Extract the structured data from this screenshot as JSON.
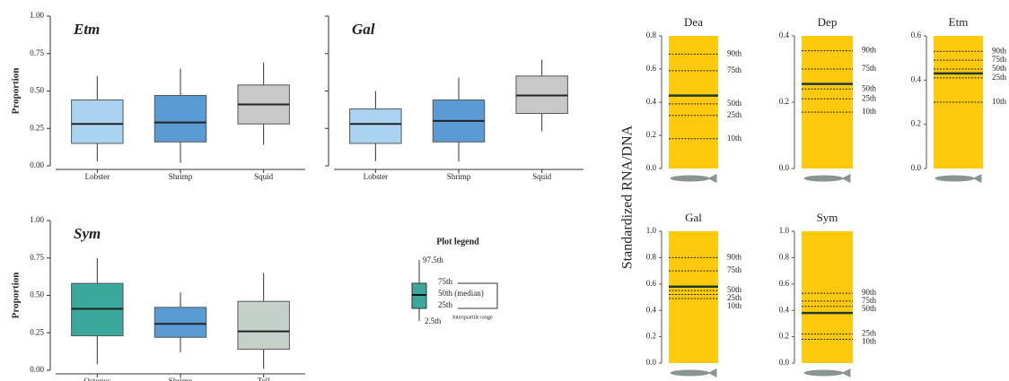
{
  "chart_data": [
    {
      "type": "box",
      "title": "Etm",
      "ylabel": "Proportion",
      "categories": [
        "Lobster",
        "Shrimp",
        "Squid"
      ],
      "colors": [
        "#a9d3f0",
        "#5b9bd5",
        "#c8c8c8"
      ],
      "whislo": [
        0.03,
        0.02,
        0.14
      ],
      "q1": [
        0.15,
        0.16,
        0.28
      ],
      "median": [
        0.28,
        0.29,
        0.41
      ],
      "q3": [
        0.44,
        0.47,
        0.54
      ],
      "whishi": [
        0.6,
        0.65,
        0.69
      ],
      "ylim": [
        0,
        1
      ],
      "yticks": [
        {
          "value": 0,
          "label": "0.00"
        },
        0.25,
        {
          "value": 0.5,
          "label": "0.50"
        },
        0.75,
        {
          "value": 1,
          "label": "1.00"
        }
      ],
      "show_ytick_labels": true
    },
    {
      "type": "box",
      "title": "Gal",
      "categories": [
        "Lobster",
        "Shrimp",
        "Squid"
      ],
      "colors": [
        "#a9d3f0",
        "#5b9bd5",
        "#c8c8c8"
      ],
      "whislo": [
        0.03,
        0.03,
        0.23
      ],
      "q1": [
        0.15,
        0.16,
        0.35
      ],
      "median": [
        0.28,
        0.3,
        0.47
      ],
      "q3": [
        0.38,
        0.44,
        0.6
      ],
      "whishi": [
        0.5,
        0.59,
        0.71
      ],
      "ylim": [
        0,
        1
      ],
      "yticks": [
        0,
        0.25,
        0.5,
        0.75,
        1
      ],
      "show_ytick_labels": false
    },
    {
      "type": "box",
      "title": "Sym",
      "ylabel": "Proportion",
      "categories": [
        "Octopus",
        "Shrimp",
        "Tell"
      ],
      "colors": [
        "#3aa89a",
        "#5b9bd5",
        "#c5d0c8"
      ],
      "whislo": [
        0.04,
        0.12,
        0.01
      ],
      "q1": [
        0.23,
        0.22,
        0.14
      ],
      "median": [
        0.41,
        0.31,
        0.26
      ],
      "q3": [
        0.58,
        0.42,
        0.46
      ],
      "whishi": [
        0.75,
        0.52,
        0.65
      ],
      "ylim": [
        0,
        1
      ],
      "yticks": [
        {
          "value": 0,
          "label": "0.00"
        },
        0.25,
        {
          "value": 0.5,
          "label": "0.50"
        },
        0.75,
        {
          "value": 1,
          "label": "1.00"
        }
      ],
      "show_ytick_labels": true
    },
    {
      "type": "percentile",
      "title": "Dea",
      "color": "#ffc90e",
      "value": 0.44,
      "percentiles": [
        {
          "name": "90th",
          "value": 0.69
        },
        {
          "name": "75th",
          "value": 0.59
        },
        {
          "name": "50th",
          "value": 0.39
        },
        {
          "name": "25th",
          "value": 0.32
        },
        {
          "name": "10th",
          "value": 0.18
        }
      ],
      "ylim": [
        0,
        0.8
      ],
      "yticks": [
        {
          "value": 0,
          "label": "0.0"
        },
        0.2,
        0.4,
        0.6,
        0.8
      ]
    },
    {
      "type": "percentile",
      "title": "Dep",
      "color": "#ffc90e",
      "value": 0.255,
      "percentiles": [
        {
          "name": "90th",
          "value": 0.355
        },
        {
          "name": "75th",
          "value": 0.3
        },
        {
          "name": "50th",
          "value": 0.24
        },
        {
          "name": "25th",
          "value": 0.21
        },
        {
          "name": "10th",
          "value": 0.17
        }
      ],
      "ylim": [
        0,
        0.4
      ],
      "yticks": [
        {
          "value": 0,
          "label": "0.0"
        },
        0.2,
        0.4
      ]
    },
    {
      "type": "percentile",
      "title": "Etm",
      "color": "#ffc90e",
      "value": 0.43,
      "percentiles": [
        {
          "name": "90th",
          "value": 0.53
        },
        {
          "name": "75th",
          "value": 0.49
        },
        {
          "name": "50th",
          "value": 0.45
        },
        {
          "name": "25th",
          "value": 0.41
        },
        {
          "name": "10th",
          "value": 0.3
        }
      ],
      "ylim": [
        0,
        0.6
      ],
      "yticks": [
        {
          "value": 0,
          "label": "0.0"
        },
        0.2,
        0.4,
        0.6
      ]
    },
    {
      "type": "percentile",
      "title": "Gal",
      "color": "#ffc90e",
      "value": 0.58,
      "percentiles": [
        {
          "name": "90th",
          "value": 0.8
        },
        {
          "name": "75th",
          "value": 0.7
        },
        {
          "name": "50th",
          "value": 0.55
        },
        {
          "name": "25th",
          "value": 0.52
        },
        {
          "name": "10th",
          "value": 0.49
        }
      ],
      "ylim": [
        0,
        1
      ],
      "yticks": [
        {
          "value": 0,
          "label": "0.0"
        },
        0.2,
        0.4,
        0.6,
        0.8,
        {
          "value": 1,
          "label": "1.0"
        }
      ]
    },
    {
      "type": "percentile",
      "title": "Sym",
      "color": "#ffc90e",
      "value": 0.38,
      "percentiles": [
        {
          "name": "90th",
          "value": 0.53
        },
        {
          "name": "75th",
          "value": 0.47
        },
        {
          "name": "50th",
          "value": 0.43
        },
        {
          "name": "25th",
          "value": 0.22
        },
        {
          "name": "10th",
          "value": 0.18
        }
      ],
      "ylim": [
        0,
        1
      ],
      "yticks": [
        {
          "value": 0,
          "label": "0.0"
        },
        0.2,
        0.4,
        0.6,
        0.8,
        {
          "value": 1,
          "label": "1.0"
        }
      ]
    }
  ],
  "y_label": "Standardized RNA/DNA",
  "plot_legend": {
    "title": "Plot legend",
    "top": "97.5th",
    "q3": "75th",
    "median": "50th (median)",
    "q1": "25th",
    "bottom": "2.5th",
    "range": "Interquartile range"
  }
}
